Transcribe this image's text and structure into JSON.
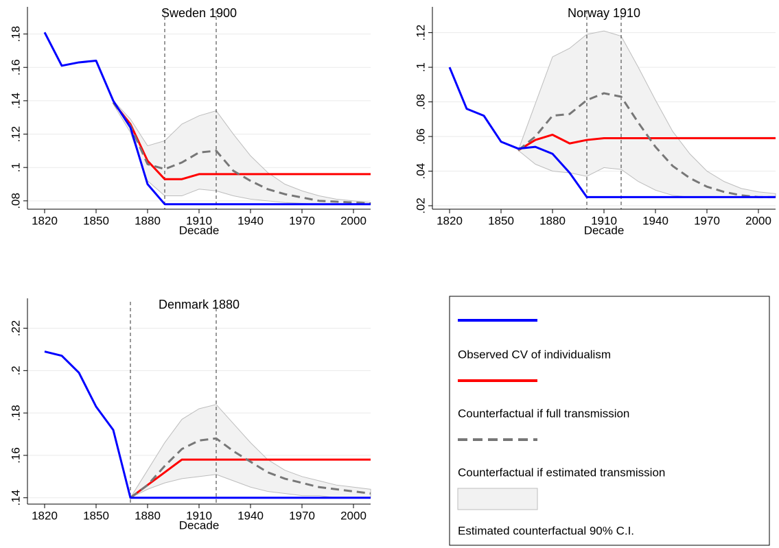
{
  "chart_data": [
    {
      "type": "line",
      "title": "Sweden 1900",
      "x_label": "Decade",
      "x": [
        1820,
        1830,
        1840,
        1850,
        1860,
        1870,
        1880,
        1890,
        1900,
        1910,
        1920,
        1930,
        1940,
        1950,
        1960,
        1970,
        1980,
        1990,
        2000,
        2010
      ],
      "xlim": [
        1810,
        2010
      ],
      "xticks": [
        1820,
        1850,
        1880,
        1910,
        1940,
        1970,
        2000
      ],
      "ylim": [
        0.075,
        0.186
      ],
      "yticks": [
        {
          "value": 0.08,
          "label": ".08"
        },
        {
          "value": 0.1,
          "label": ".1"
        },
        {
          "value": 0.12,
          "label": ".12"
        },
        {
          "value": 0.14,
          "label": ".14"
        },
        {
          "value": 0.16,
          "label": ".16"
        },
        {
          "value": 0.18,
          "label": ".18"
        }
      ],
      "grid": true,
      "vlines": [
        1890,
        1920
      ],
      "series": [
        {
          "name": "Observed CV of individualism",
          "color": "#0000ff",
          "values": [
            0.181,
            0.161,
            0.163,
            0.164,
            0.14,
            0.124,
            0.09,
            0.078,
            0.078,
            0.078,
            0.078,
            0.078,
            0.078,
            0.078,
            0.078,
            0.078,
            0.078,
            0.078,
            0.078,
            0.078
          ]
        },
        {
          "name": "Counterfactual if full transmission",
          "color": "#ff0000",
          "values": [
            null,
            null,
            null,
            null,
            0.139,
            0.126,
            0.104,
            0.093,
            0.093,
            0.096,
            0.096,
            0.096,
            0.096,
            0.096,
            0.096,
            0.096,
            0.096,
            0.096,
            0.096,
            0.096
          ]
        },
        {
          "name": "Counterfactual if estimated transmission",
          "color": "#777777",
          "dash": true,
          "values": [
            null,
            null,
            null,
            null,
            0.139,
            0.125,
            0.102,
            0.099,
            0.103,
            0.109,
            0.11,
            0.098,
            0.092,
            0.087,
            0.084,
            0.082,
            0.08,
            0.0795,
            0.079,
            0.0785
          ]
        },
        {
          "name": "Estimated counterfactual 90% C.I.",
          "color": "#f2f2f2",
          "band": true,
          "upper": [
            null,
            null,
            null,
            null,
            0.14,
            0.129,
            0.113,
            0.116,
            0.126,
            0.131,
            0.134,
            0.12,
            0.107,
            0.097,
            0.09,
            0.086,
            0.083,
            0.081,
            0.08,
            0.079
          ],
          "lower": [
            null,
            null,
            null,
            null,
            0.138,
            0.121,
            0.092,
            0.083,
            0.083,
            0.087,
            0.086,
            0.083,
            0.081,
            0.08,
            0.079,
            0.0785,
            0.078,
            0.078,
            0.078,
            0.078
          ]
        }
      ]
    },
    {
      "type": "line",
      "title": "Norway 1910",
      "x_label": "Decade",
      "x": [
        1820,
        1830,
        1840,
        1850,
        1860,
        1870,
        1880,
        1890,
        1900,
        1910,
        1920,
        1930,
        1940,
        1950,
        1960,
        1970,
        1980,
        1990,
        2000,
        2010
      ],
      "xlim": [
        1810,
        2010
      ],
      "xticks": [
        1820,
        1850,
        1880,
        1910,
        1940,
        1970,
        2000
      ],
      "ylim": [
        0.018,
        0.125
      ],
      "yticks": [
        {
          "value": 0.02,
          "label": ".02"
        },
        {
          "value": 0.04,
          "label": ".04"
        },
        {
          "value": 0.06,
          "label": ".06"
        },
        {
          "value": 0.08,
          "label": ".08"
        },
        {
          "value": 0.1,
          "label": ".1"
        },
        {
          "value": 0.12,
          "label": ".12"
        }
      ],
      "grid": true,
      "vlines": [
        1900,
        1920
      ],
      "series": [
        {
          "color": "#0000ff",
          "values": [
            0.1,
            0.076,
            0.072,
            0.057,
            0.053,
            0.054,
            0.05,
            0.039,
            0.025,
            0.025,
            0.025,
            0.025,
            0.025,
            0.025,
            0.025,
            0.025,
            0.025,
            0.025,
            0.025,
            0.025
          ]
        },
        {
          "color": "#ff0000",
          "values": [
            null,
            null,
            null,
            null,
            0.052,
            0.058,
            0.061,
            0.056,
            0.058,
            0.059,
            0.059,
            0.059,
            0.059,
            0.059,
            0.059,
            0.059,
            0.059,
            0.059,
            0.059,
            0.059
          ]
        },
        {
          "color": "#777777",
          "dash": true,
          "values": [
            null,
            null,
            null,
            null,
            0.052,
            0.06,
            0.072,
            0.073,
            0.081,
            0.085,
            0.083,
            0.068,
            0.054,
            0.043,
            0.036,
            0.031,
            0.028,
            0.026,
            0.025,
            0.025
          ]
        },
        {
          "color": "#f2f2f2",
          "band": true,
          "upper": [
            null,
            null,
            null,
            null,
            0.052,
            0.079,
            0.106,
            0.111,
            0.119,
            0.121,
            0.118,
            0.1,
            0.081,
            0.063,
            0.05,
            0.04,
            0.034,
            0.03,
            0.028,
            0.027
          ],
          "lower": [
            null,
            null,
            null,
            null,
            0.052,
            0.044,
            0.04,
            0.039,
            0.037,
            0.042,
            0.041,
            0.034,
            0.029,
            0.026,
            0.025,
            0.025,
            0.025,
            0.025,
            0.025,
            0.025
          ]
        }
      ]
    },
    {
      "type": "line",
      "title": "Denmark 1880",
      "x_label": "Decade",
      "x": [
        1820,
        1830,
        1840,
        1850,
        1860,
        1870,
        1880,
        1890,
        1900,
        1910,
        1920,
        1930,
        1940,
        1950,
        1960,
        1970,
        1980,
        1990,
        2000,
        2010
      ],
      "xlim": [
        1810,
        2010
      ],
      "xticks": [
        1820,
        1850,
        1880,
        1910,
        1940,
        1970,
        2000
      ],
      "ylim": [
        0.137,
        0.226
      ],
      "yticks": [
        {
          "value": 0.14,
          "label": ".14"
        },
        {
          "value": 0.16,
          "label": ".16"
        },
        {
          "value": 0.18,
          "label": ".18"
        },
        {
          "value": 0.2,
          "label": ".2"
        },
        {
          "value": 0.22,
          "label": ".22"
        }
      ],
      "grid": true,
      "vlines": [
        1870,
        1920
      ],
      "series": [
        {
          "color": "#0000ff",
          "values": [
            0.209,
            0.207,
            0.199,
            0.183,
            0.172,
            0.14,
            0.14,
            0.14,
            0.14,
            0.14,
            0.14,
            0.14,
            0.14,
            0.14,
            0.14,
            0.14,
            0.14,
            0.14,
            0.14,
            0.14
          ]
        },
        {
          "color": "#ff0000",
          "values": [
            null,
            null,
            null,
            null,
            null,
            0.14,
            0.146,
            0.152,
            0.158,
            0.158,
            0.158,
            0.158,
            0.158,
            0.158,
            0.158,
            0.158,
            0.158,
            0.158,
            0.158,
            0.158
          ]
        },
        {
          "color": "#777777",
          "dash": true,
          "values": [
            null,
            null,
            null,
            null,
            null,
            0.14,
            0.146,
            0.155,
            0.163,
            0.167,
            0.168,
            0.162,
            0.157,
            0.152,
            0.149,
            0.147,
            0.145,
            0.144,
            0.143,
            0.142
          ]
        },
        {
          "color": "#f2f2f2",
          "band": true,
          "upper": [
            null,
            null,
            null,
            null,
            null,
            0.14,
            0.153,
            0.166,
            0.177,
            0.182,
            0.184,
            0.175,
            0.166,
            0.158,
            0.153,
            0.15,
            0.148,
            0.146,
            0.145,
            0.144
          ],
          "lower": [
            null,
            null,
            null,
            null,
            null,
            0.14,
            0.144,
            0.147,
            0.149,
            0.15,
            0.151,
            0.148,
            0.145,
            0.143,
            0.142,
            0.141,
            0.141,
            0.14,
            0.14,
            0.14
          ]
        }
      ]
    }
  ]
}
